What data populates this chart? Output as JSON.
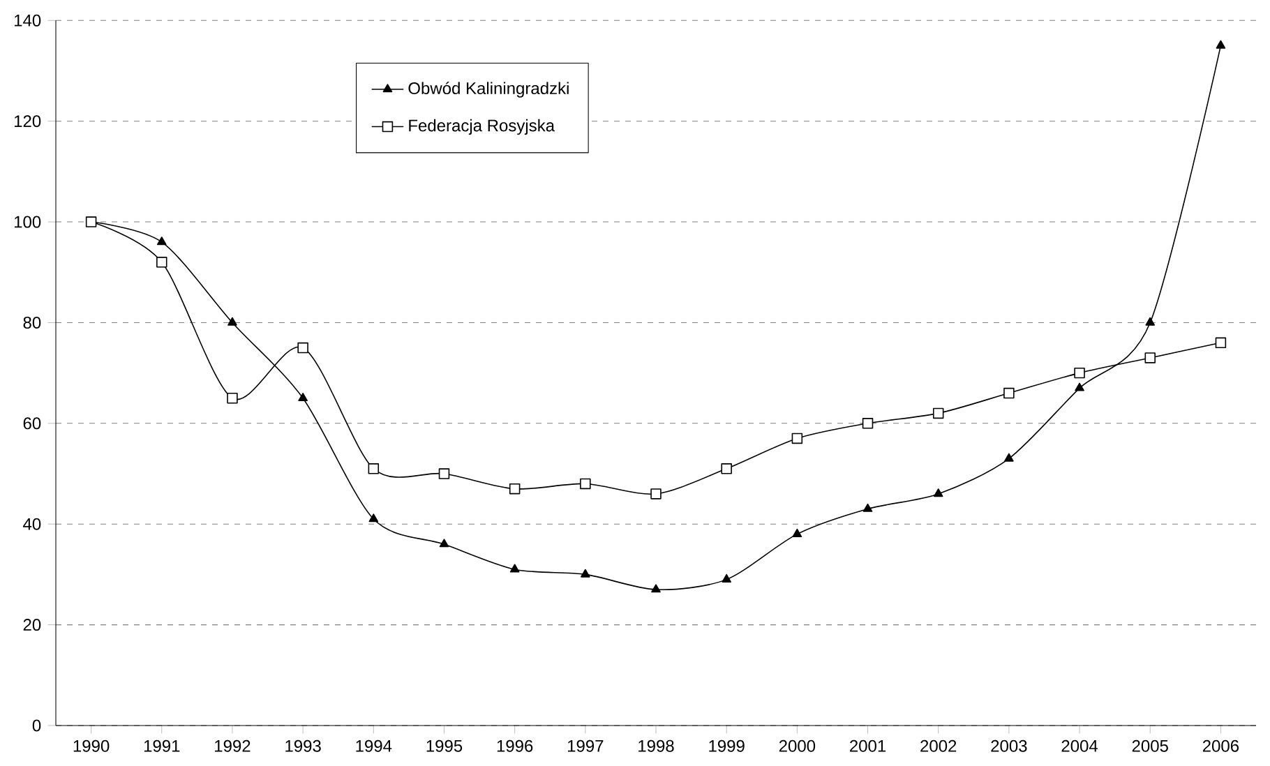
{
  "chart_data": {
    "type": "line",
    "categories": [
      "1990",
      "1991",
      "1992",
      "1993",
      "1994",
      "1995",
      "1996",
      "1997",
      "1998",
      "1999",
      "2000",
      "2001",
      "2002",
      "2003",
      "2004",
      "2005",
      "2006"
    ],
    "series": [
      {
        "name": "Obwód Kaliningradzki",
        "color": "#000000",
        "marker": "triangle",
        "values": [
          100,
          96,
          80,
          65,
          41,
          36,
          31,
          30,
          27,
          29,
          38,
          43,
          46,
          53,
          67,
          80,
          135
        ]
      },
      {
        "name": "Federacja Rosyjska",
        "color": "#000000",
        "marker": "square",
        "values": [
          100,
          92,
          65,
          75,
          51,
          50,
          47,
          48,
          46,
          51,
          57,
          60,
          62,
          66,
          70,
          73,
          76
        ]
      }
    ],
    "ylim": [
      0,
      140
    ],
    "yticks": [
      0,
      20,
      40,
      60,
      80,
      100,
      120,
      140
    ],
    "grid": "y",
    "legend": "top left",
    "line_style": "solid"
  }
}
